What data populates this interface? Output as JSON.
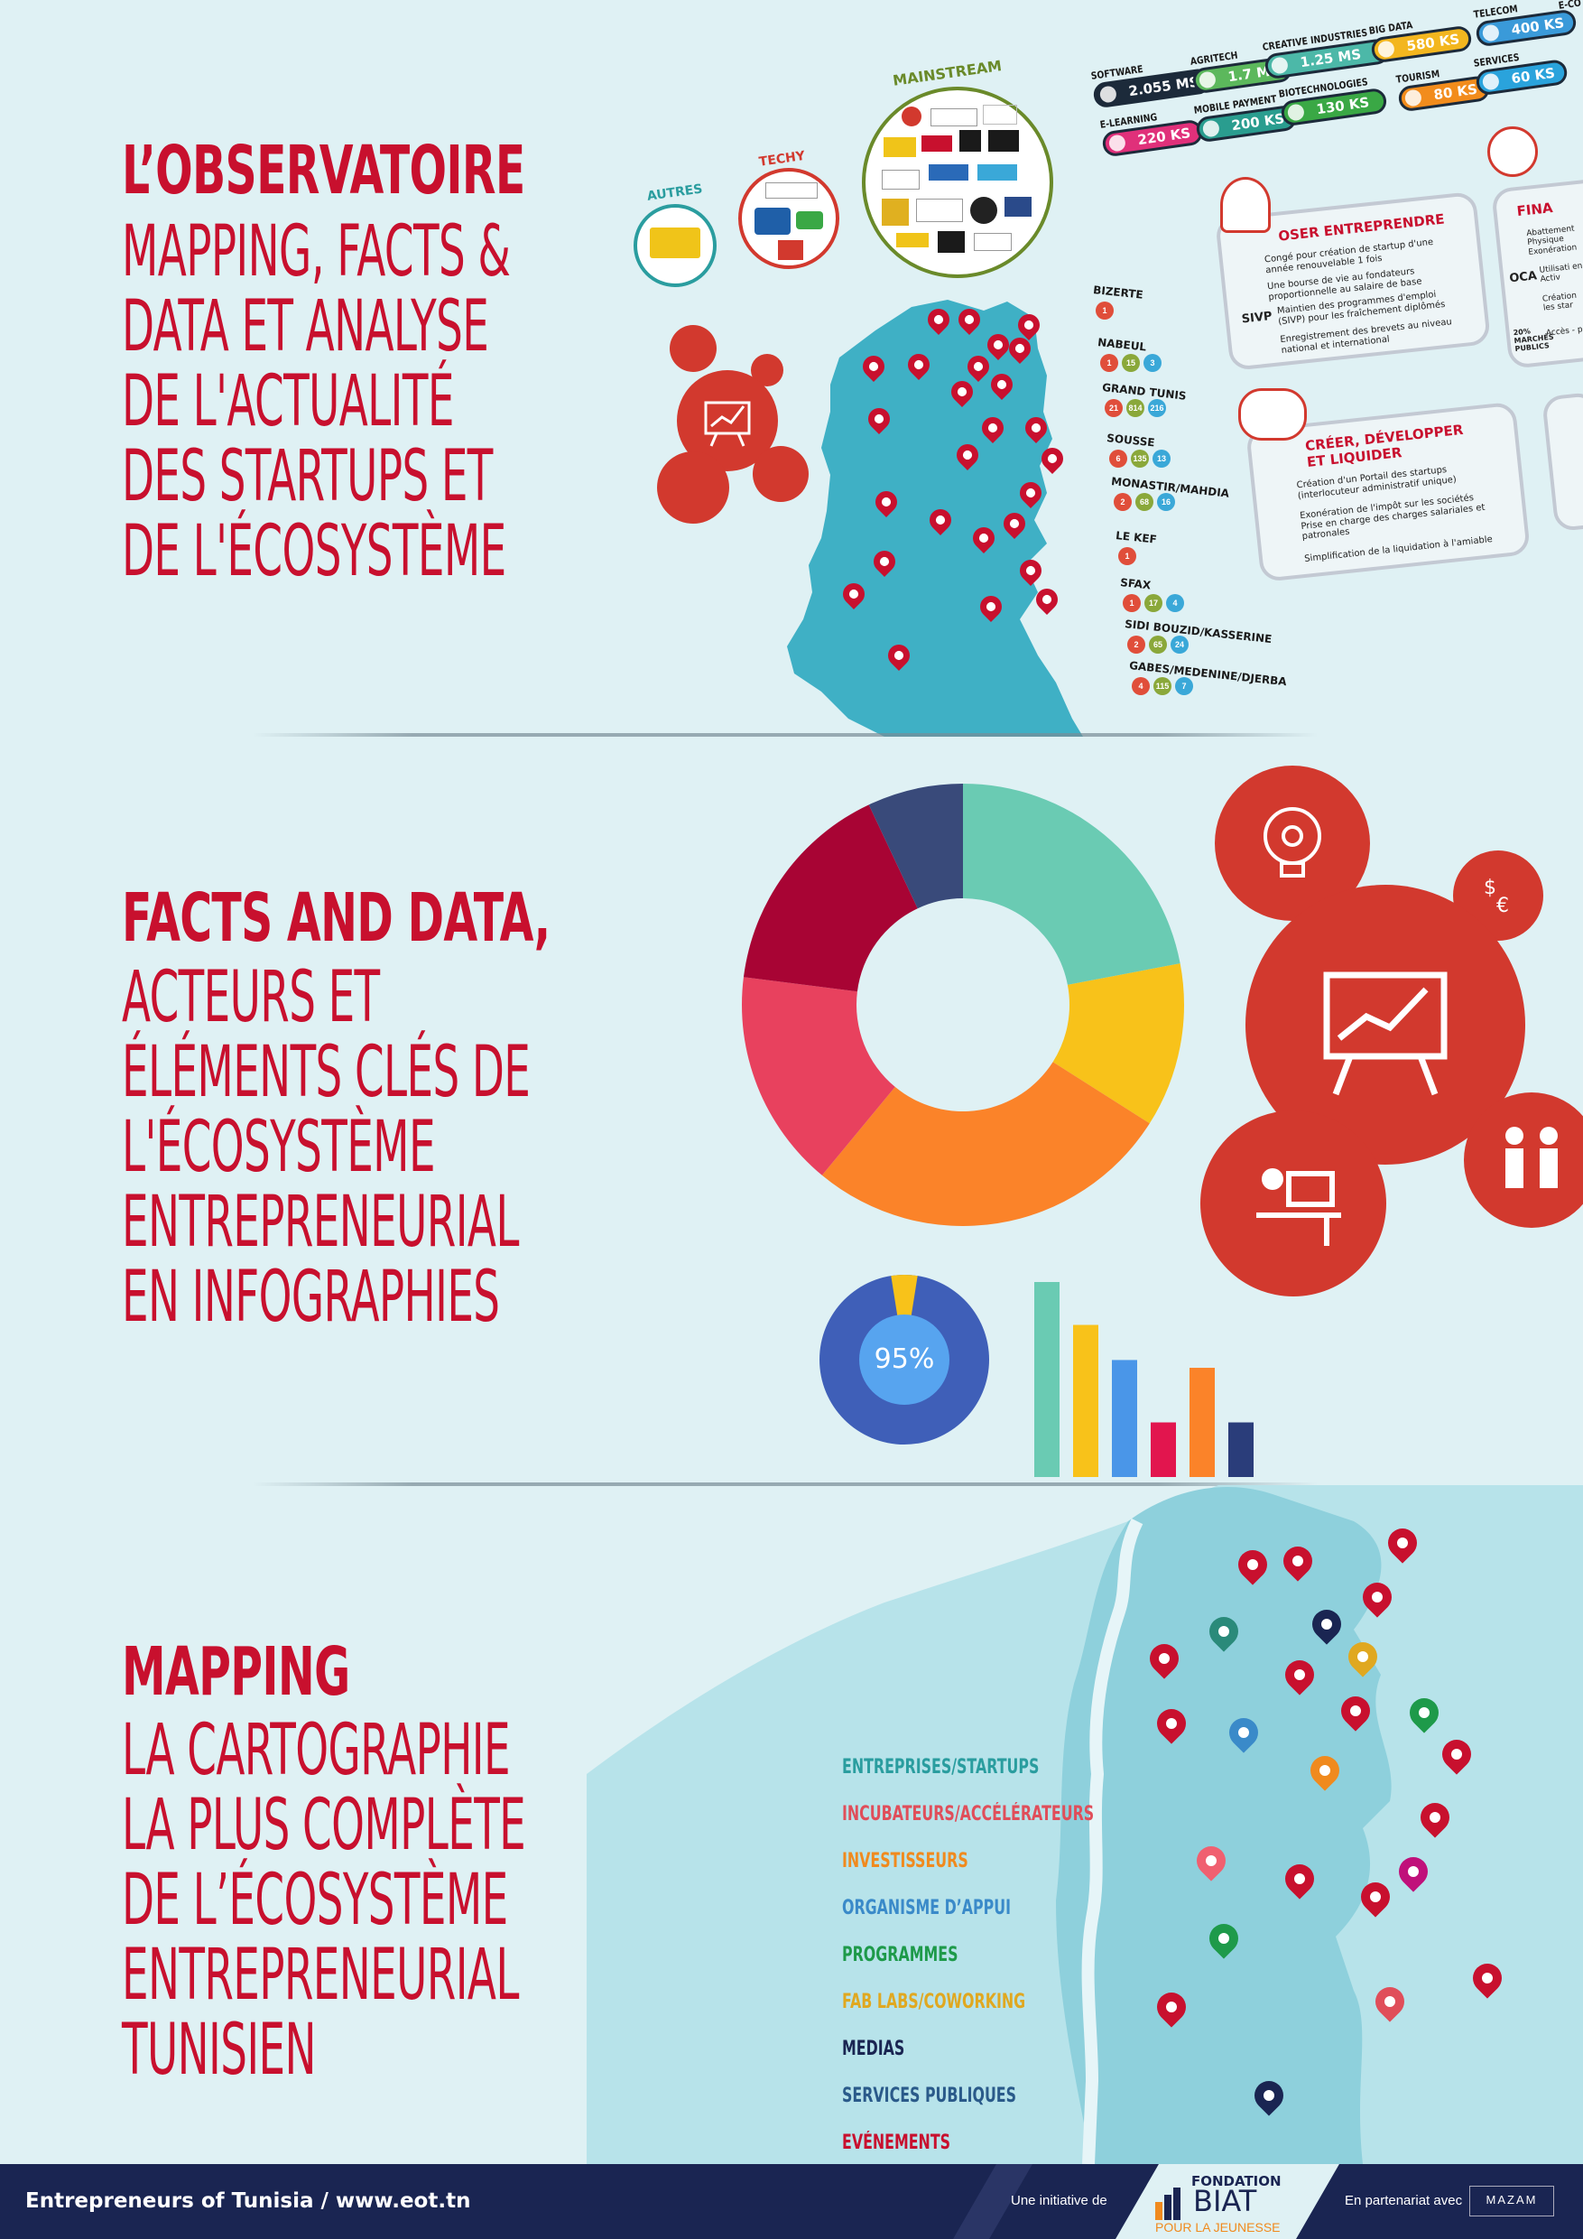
{
  "section1": {
    "title": "L’OBSERVATOIRE",
    "lines": [
      "MAPPING, FACTS &",
      "DATA ET ANALYSE",
      "DE L'ACTUALITÉ",
      "DES STARTUPS ET",
      "DE L'ÉCOSYSTÈME"
    ],
    "categories": {
      "autres": "AUTRES",
      "techy": "TECHY",
      "mainstream": "MAINSTREAM"
    },
    "sectors": [
      {
        "label": "SOFTWARE",
        "value": "2.055 MS",
        "color": "#1c2a3a"
      },
      {
        "label": "AGRITECH",
        "value": "1.7 MS",
        "color": "#5cb85c"
      },
      {
        "label": "CREATIVE INDUSTRIES",
        "value": "1.25 MS",
        "color": "#4cb8a8"
      },
      {
        "label": "BIG DATA",
        "value": "580 KS",
        "color": "#f3b61f"
      },
      {
        "label": "TELECOM",
        "value": "400 KS",
        "color": "#3a9ad9"
      },
      {
        "label": "E-LEARNING",
        "value": "220 KS",
        "color": "#e0307a"
      },
      {
        "label": "MOBILE PAYMENT",
        "value": "200 KS",
        "color": "#2a9d8f"
      },
      {
        "label": "BIOTECHNOLOGIES",
        "value": "130 KS",
        "color": "#3aa845"
      },
      {
        "label": "TOURISM",
        "value": "80 KS",
        "color": "#f28c1c"
      },
      {
        "label": "SERVICES",
        "value": "60 KS",
        "color": "#2aa3dc"
      },
      {
        "label": "E-CO",
        "value": "",
        "color": "#2aa3dc"
      }
    ],
    "regions": [
      {
        "name": "BIZERTE",
        "counts": [
          "1"
        ]
      },
      {
        "name": "NABEUL",
        "counts": [
          "1",
          "15",
          "3"
        ]
      },
      {
        "name": "GRAND TUNIS",
        "counts": [
          "21",
          "814",
          "216"
        ]
      },
      {
        "name": "SOUSSE",
        "counts": [
          "6",
          "135",
          "13"
        ]
      },
      {
        "name": "MONASTIR/MAHDIA",
        "counts": [
          "2",
          "68",
          "16"
        ]
      },
      {
        "name": "LE KEF",
        "counts": [
          "1"
        ]
      },
      {
        "name": "SFAX",
        "counts": [
          "1",
          "17",
          "4"
        ]
      },
      {
        "name": "SIDI BOUZID/KASSERINE",
        "counts": [
          "2",
          "65",
          "24"
        ]
      },
      {
        "name": "GABES/MEDENINE/DJERBA",
        "counts": [
          "4",
          "115",
          "7"
        ]
      }
    ],
    "card1": {
      "title": "OSER ENTREPRENDRE",
      "items": [
        "Congé pour création de startup d'une année renouvelable 1 fois",
        "Une bourse de vie au fondateurs proportionnelle au salaire de base",
        "Maintien des programmes d'emploi (SIVP) pour les fraîchement diplômés",
        "Enregistrement des brevets au niveau national et international"
      ],
      "item_label": "SIVP"
    },
    "card2": {
      "title": "CRÉER, DÉVELOPPER ET LIQUIDER",
      "items": [
        "Création d'un Portail des startups (interlocuteur administratif unique)",
        "Exonération de l'impôt sur les sociétés Prise en charge des charges salariales et patronales",
        "Simplification de la liquidation à l'amiable"
      ]
    },
    "card3": {
      "title": "FINA",
      "items": [
        "Abattement Physique Exonération",
        "Utilisati en Activ",
        "Création les star",
        "Accès - pe"
      ],
      "labels": [
        "OCA",
        "20% MARCHÉS PUBLICS"
      ]
    }
  },
  "section2": {
    "title": "FACTS AND DATA,",
    "lines": [
      "ACTEURS ET",
      "ÉLÉMENTS CLÉS DE",
      "L'ÉCOSYSTÈME",
      "ENTREPRENEURIAL",
      "EN INFOGRAPHIES"
    ],
    "donut_percent": "95%",
    "donut_value": 95,
    "pie_shares": [
      {
        "share": 22,
        "color": "#6acbb3"
      },
      {
        "share": 12,
        "color": "#f8c21a"
      },
      {
        "share": 27,
        "color": "#fb8329"
      },
      {
        "share": 16,
        "color": "#e8415e"
      },
      {
        "share": 16,
        "color": "#a80434"
      },
      {
        "share": 7,
        "color": "#394a7a"
      }
    ],
    "bars": [
      {
        "value": 100,
        "color": "#6acbb3"
      },
      {
        "value": 78,
        "color": "#f8c21a"
      },
      {
        "value": 60,
        "color": "#4a96e8"
      },
      {
        "value": 28,
        "color": "#e2154e"
      },
      {
        "value": 56,
        "color": "#fb8329"
      },
      {
        "value": 28,
        "color": "#2a3d7a"
      }
    ],
    "colors": {
      "icon_circle": "#d2392e"
    }
  },
  "section3": {
    "title": "MAPPING",
    "lines": [
      "LA CARTOGRAPHIE",
      "LA PLUS COMPLÈTE",
      "DE L’ÉCOSYSTÈME",
      "ENTREPRENEURIAL",
      "TUNISIEN"
    ],
    "legend": [
      {
        "label": "ENTREPRISES/STARTUPS",
        "color": "#2a9d9f"
      },
      {
        "label": "INCUBATEURS/ACCÉLÉRATEURS",
        "color": "#e04e5a"
      },
      {
        "label": "INVESTISSEURS",
        "color": "#f08a1e"
      },
      {
        "label": "ORGANISME D’APPUI",
        "color": "#3a8ac9"
      },
      {
        "label": "PROGRAMMES",
        "color": "#1e9a4a"
      },
      {
        "label": "FAB LABS/COWORKING",
        "color": "#e0a820"
      },
      {
        "label": "MEDIAS",
        "color": "#1a2552"
      },
      {
        "label": "SERVICES PUBLIQUES",
        "color": "#2a5a8a"
      },
      {
        "label": "EVÉNEMENTS",
        "color": "#c8102e"
      }
    ]
  },
  "footer": {
    "site": "Entrepreneurs of Tunisia / www.eot.tn",
    "initiative": "Une initiative de",
    "foundation_line1": "FONDATION",
    "foundation_line2": "BIAT",
    "foundation_line3": "POUR LA JEUNESSE",
    "partner": "En partenariat avec",
    "partner_logo": "MAZAM"
  }
}
